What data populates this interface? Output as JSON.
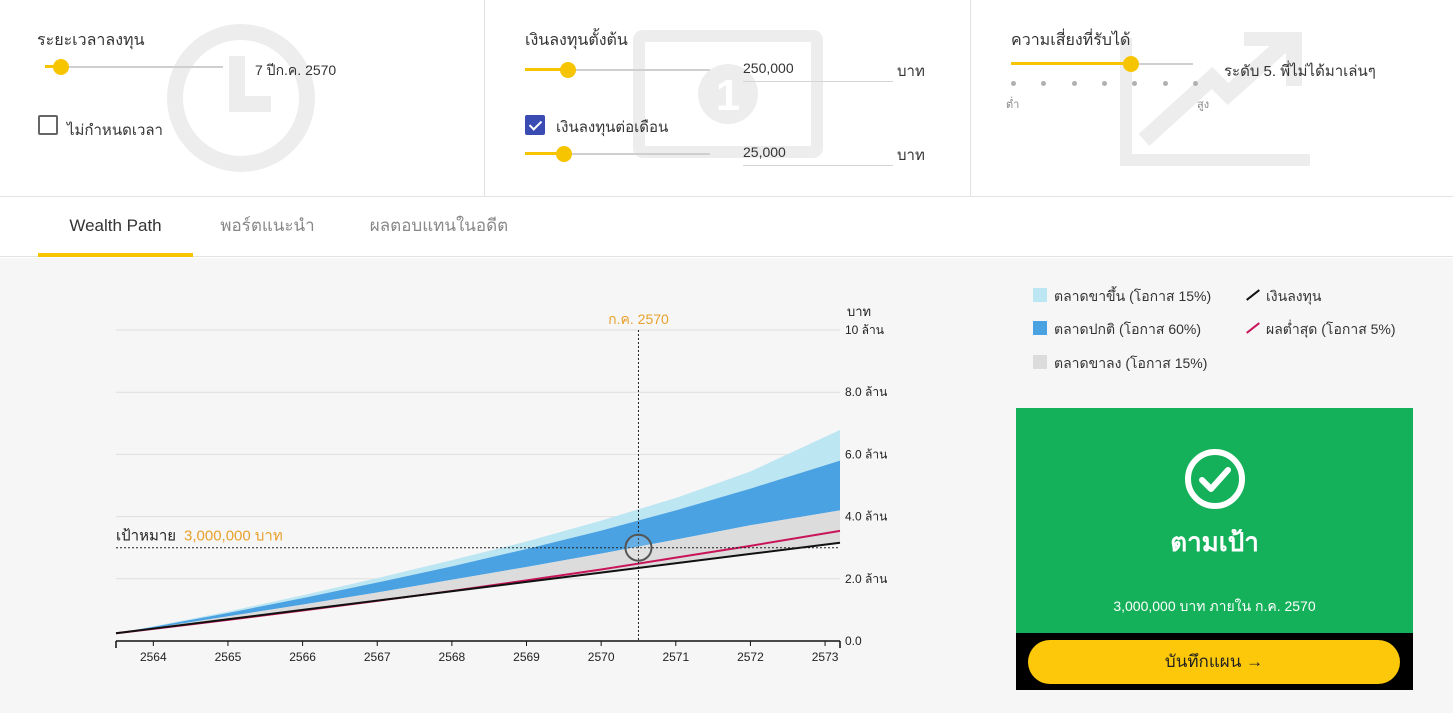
{
  "colors": {
    "accent": "#f7c400",
    "band_up": "#bde6f3",
    "band_normal": "#4aa2e2",
    "band_down": "#dcdcdc",
    "invested_line": "#111111",
    "worst_line": "#c8155a",
    "goal_text": "#e7a12c",
    "success": "#15b05a",
    "button": "#fdc70a"
  },
  "panels": {
    "duration": {
      "title": "ระยะเวลาลงทุน",
      "value": "7 ปีก.ค. 2570",
      "slider_fraction": 0.09,
      "checkbox_label": "ไม่กำหนดเวลา",
      "checkbox_checked": false,
      "bg_icon": "clock-icon"
    },
    "initial": {
      "title": "เงินลงทุนตั้งต้น",
      "value": "250,000",
      "unit": "บาท",
      "slider_fraction": 0.23,
      "monthly_label": "เงินลงทุนต่อเดือน",
      "monthly_checked": true,
      "monthly_value": "25,000",
      "monthly_unit": "บาท",
      "monthly_slider_fraction": 0.21,
      "bg_icon": "banknote-icon"
    },
    "risk": {
      "title": "ความเสี่ยงที่รับได้",
      "value": "ระดับ 5. พี่ไม่ได้มาเล่นๆ",
      "slider_fraction": 0.66,
      "low_label": "ต่ำ",
      "high_label": "สูง",
      "levels": 7,
      "bg_icon": "trend-up-icon"
    }
  },
  "tabs": [
    {
      "label": "Wealth Path",
      "active": true
    },
    {
      "label": "พอร์ตแนะนำ",
      "active": false
    },
    {
      "label": "ผลตอบแทนในอดีต",
      "active": false
    }
  ],
  "legend": [
    {
      "label": "ตลาดขาขึ้น (โอกาส 15%)",
      "kind": "swatch",
      "color": "#bde6f3"
    },
    {
      "label": "ตลาดปกติ (โอกาส 60%)",
      "kind": "swatch",
      "color": "#4aa2e2"
    },
    {
      "label": "ตลาดขาลง (โอกาส 15%)",
      "kind": "swatch",
      "color": "#dcdcdc"
    },
    {
      "label": "เงินลงทุน",
      "kind": "line",
      "color": "#111111"
    },
    {
      "label": "ผลต่ำสุด (โอกาส 5%)",
      "kind": "line",
      "color": "#c8155a"
    }
  ],
  "chart_data": {
    "type": "area",
    "ylabel": "บาท",
    "ylim": [
      0,
      10000000
    ],
    "xlim": [
      2563.5,
      2573.2
    ],
    "y_ticks": [
      {
        "v": 0,
        "label": "0.0"
      },
      {
        "v": 2000000,
        "label": "2.0 ล้าน"
      },
      {
        "v": 4000000,
        "label": "4.0 ล้าน"
      },
      {
        "v": 6000000,
        "label": "6.0 ล้าน"
      },
      {
        "v": 8000000,
        "label": "8.0 ล้าน"
      },
      {
        "v": 10000000,
        "label": "10 ล้าน"
      }
    ],
    "x_ticks": [
      2564,
      2565,
      2566,
      2567,
      2568,
      2569,
      2570,
      2571,
      2572,
      2573
    ],
    "x": [
      2563.5,
      2564,
      2565,
      2566,
      2567,
      2568,
      2569,
      2570,
      2571,
      2572,
      2573.2
    ],
    "series": [
      {
        "name": "ตลาดขาขึ้น (โอกาส 15%)",
        "values": [
          250000,
          470000,
          950000,
          1470000,
          2020000,
          2600000,
          3200000,
          3870000,
          4600000,
          5450000,
          6790000
        ]
      },
      {
        "name": "ตลาดปกติ (โอกาส 60%)",
        "values": [
          250000,
          455000,
          900000,
          1380000,
          1880000,
          2400000,
          2960000,
          3550000,
          4200000,
          4900000,
          5800000
        ]
      },
      {
        "name": "ตลาดขาลง (โอกาส 15%)",
        "values": [
          250000,
          420000,
          790000,
          1170000,
          1560000,
          1970000,
          2380000,
          2810000,
          3260000,
          3720000,
          4200000
        ]
      },
      {
        "name": "เงินลงทุน",
        "values": [
          250000,
          400000,
          700000,
          1000000,
          1300000,
          1600000,
          1900000,
          2200000,
          2500000,
          2800000,
          3160000
        ]
      },
      {
        "name": "ผลต่ำสุด (โอกาส 5%)",
        "values": [
          250000,
          390000,
          680000,
          980000,
          1290000,
          1610000,
          1950000,
          2300000,
          2680000,
          3060000,
          3540000
        ]
      }
    ],
    "marker": {
      "x": 2570.5,
      "y": 3000000,
      "label": "ก.ค. 2570"
    },
    "goal": {
      "value": 3000000,
      "label": "เป้าหมาย",
      "amount": "3,000,000 บาท"
    }
  },
  "result": {
    "status": "ตามเป้า",
    "detail": "3,000,000 บาท ภายใน ก.ค. 2570",
    "button": "บันทึกแผน →",
    "icon": "check-circle-icon"
  }
}
